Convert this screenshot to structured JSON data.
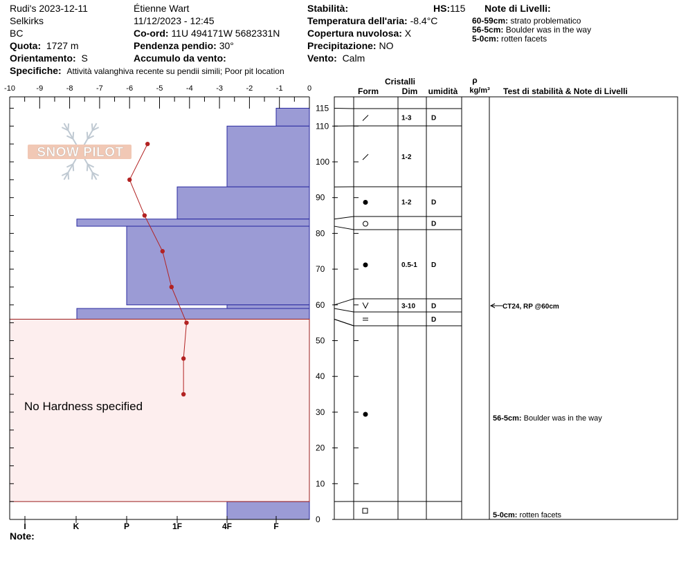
{
  "header": {
    "col1": [
      "Rudi's 2023-12-11",
      "Selkirks",
      "BC"
    ],
    "quota_label": "Quota:",
    "quota_value": "1727 m",
    "orient_label": "Orientamento:",
    "orient_value": "S",
    "observer": "Étienne Wart",
    "datetime": "11/12/2023 - 12:45",
    "coord_label": "Co-ord:",
    "coord_value": "11U 494171W 5682331N",
    "slope_label": "Pendenza pendio:",
    "slope_value": "30°",
    "wind_load_label": "Accumulo da vento:",
    "stability_label": "Stabilità:",
    "hs_label": "HS:",
    "hs_value": "115",
    "air_temp_label": "Temperatura dell'aria:",
    "air_temp_value": "-8.4°C",
    "cloud_label": "Copertura nuvolosa:",
    "cloud_value": "X",
    "precip_label": "Precipitazione:",
    "precip_value": "NO",
    "wind_label": "Vento:",
    "wind_value": "Calm",
    "specifics_label": "Specifiche:",
    "specifics_value": "Attività valanghiva recente su pendii simili;  Poor pit location",
    "notes_title": "Note di Livelli:",
    "notes": [
      {
        "range": "60-59cm:",
        "text": "strato problematico"
      },
      {
        "range": "56-5cm:",
        "text": "Boulder was in the way"
      },
      {
        "range": "5-0cm:",
        "text": "rotten facets"
      }
    ]
  },
  "logo_text": "SNOW PILOT",
  "temp_axis_ticks": [
    "-10",
    "-9",
    "-8",
    "-7",
    "-6",
    "-5",
    "-4",
    "-3",
    "-2",
    "-1",
    "0"
  ],
  "hardness_axis_ticks": [
    "I",
    "K",
    "P",
    "1F",
    "4F",
    "F"
  ],
  "height_axis_ticks": [
    "115",
    "110",
    "100",
    "90",
    "80",
    "70",
    "60",
    "50",
    "40",
    "30",
    "20",
    "10",
    "0"
  ],
  "no_hardness_text": "No Hardness specified",
  "note_label": "Note:",
  "table_headers": {
    "cristalli": "Cristalli",
    "form": "Form",
    "dim": "Dim",
    "umidita": "umidità",
    "rho": "ρ",
    "density_unit": "kg/m³",
    "tests": "Test di stabilità & Note di Livelli"
  },
  "chart_data": {
    "type": "snow_profile",
    "height_unit": "cm",
    "height_range": [
      0,
      115
    ],
    "temperature_range": [
      -10,
      0
    ],
    "temperature_profile": [
      {
        "height": 105,
        "temp": -5.4
      },
      {
        "height": 95,
        "temp": -6.0
      },
      {
        "height": 85,
        "temp": -5.5
      },
      {
        "height": 75,
        "temp": -4.9
      },
      {
        "height": 65,
        "temp": -4.6
      },
      {
        "height": 55,
        "temp": -4.1
      },
      {
        "height": 45,
        "temp": -4.2
      },
      {
        "height": 35,
        "temp": -4.2
      }
    ],
    "hardness_layers": [
      {
        "top": 115,
        "bottom": 110,
        "hardness": "F+"
      },
      {
        "top": 110,
        "bottom": 93,
        "hardness": "4F-"
      },
      {
        "top": 93,
        "bottom": 84,
        "hardness": "1F+"
      },
      {
        "top": 84,
        "bottom": 82,
        "hardness": "K-"
      },
      {
        "top": 82,
        "bottom": 60,
        "hardness": "P"
      },
      {
        "top": 60,
        "bottom": 59,
        "hardness": "4F-"
      },
      {
        "top": 59,
        "bottom": 56,
        "hardness": "K-"
      },
      {
        "top": 5,
        "bottom": 0,
        "hardness": "4F-"
      }
    ],
    "no_hardness_range": [
      5,
      56
    ],
    "layers": [
      {
        "top": 115,
        "bottom": 110,
        "form": "/",
        "dim": "1-3",
        "wetness": "D"
      },
      {
        "top": 110,
        "bottom": 93,
        "form": "/",
        "dim": "1-2",
        "wetness": ""
      },
      {
        "top": 93,
        "bottom": 84,
        "form": "●",
        "dim": "1-2",
        "wetness": "D"
      },
      {
        "top": 84,
        "bottom": 82,
        "form": "○",
        "dim": "",
        "wetness": "D"
      },
      {
        "top": 82,
        "bottom": 60,
        "form": "●",
        "dim": "0.5-1",
        "wetness": "D"
      },
      {
        "top": 60,
        "bottom": 59,
        "form": "V",
        "dim": "3-10",
        "wetness": "D"
      },
      {
        "top": 59,
        "bottom": 56,
        "form": "=",
        "dim": "",
        "wetness": "D"
      },
      {
        "top": 56,
        "bottom": 5,
        "form": "●",
        "dim": "",
        "wetness": ""
      },
      {
        "top": 5,
        "bottom": 0,
        "form": "□",
        "dim": "",
        "wetness": ""
      }
    ],
    "annotations": [
      {
        "height": 60,
        "text": "CT24, RP @60cm",
        "arrow": true
      },
      {
        "height": 28,
        "text": "56-5cm:",
        "text2": "Boulder was in the way"
      },
      {
        "height": 1,
        "text": "5-0cm:",
        "text2": "rotten facets"
      }
    ]
  }
}
